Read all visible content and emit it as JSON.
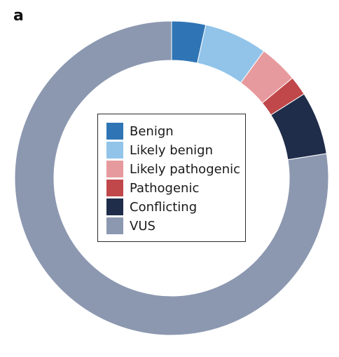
{
  "panel_label": "a",
  "chart_data": {
    "type": "pie",
    "style": "donut",
    "title": "",
    "categories": [
      "Benign",
      "Likely benign",
      "Likely pathogenic",
      "Pathogenic",
      "Conflicting",
      "VUS"
    ],
    "values": [
      3.5,
      6.5,
      4.0,
      2.0,
      6.5,
      77.5
    ],
    "unit": "percent (estimated)",
    "colors": [
      "#2f75b5",
      "#92c4ea",
      "#e79a9d",
      "#c0484a",
      "#1f2d4a",
      "#8c98b0"
    ],
    "start_angle": "12 o'clock",
    "direction": "clockwise",
    "legend": {
      "placement": "center",
      "entries": [
        "Benign",
        "Likely benign",
        "Likely pathogenic",
        "Pathogenic",
        "Conflicting",
        "VUS"
      ]
    }
  }
}
